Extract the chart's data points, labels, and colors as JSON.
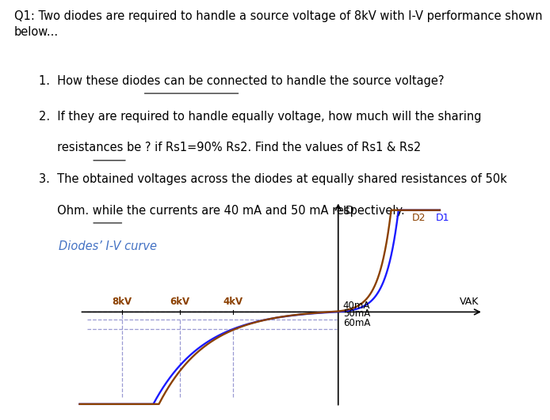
{
  "title_text": "Q1: Two diodes are required to handle a source voltage of 8kV with I-V performance shown\nbelow...",
  "item1": "How these diodes can be connected to handle the source voltage?",
  "item1_underline": "can be connected",
  "item2_line1": "If they are required to handle equally voltage, how much will the sharing",
  "item2_line2": "resistances be ? if Rs1=90% Rs2. Find the values of Rs1 & Rs2",
  "item2_underline": "be ?",
  "item3_line1": "The obtained voltages across the diodes at equally shared resistances of 50k",
  "item3_line2": "Ohm. while the currents are 40 mA and 50 mA respectively.",
  "item3_underline": "while",
  "chart_title": "Diodes’ I-V curve",
  "d1_color": "#1a1aff",
  "d2_color": "#8B4000",
  "axis_label_id": "ID",
  "axis_label_vak": "VAK",
  "label_8kv": "8kV",
  "label_6kv": "6kV",
  "label_4kv": "4kV",
  "label_40ma": "40mA",
  "label_50ma": "50mA",
  "label_60ma": "60mA",
  "label_d1": "D1",
  "label_d2": "D2",
  "background_color": "#ffffff",
  "text_color": "#000000",
  "font_size_main": 10.5,
  "font_size_chart": 8.5
}
